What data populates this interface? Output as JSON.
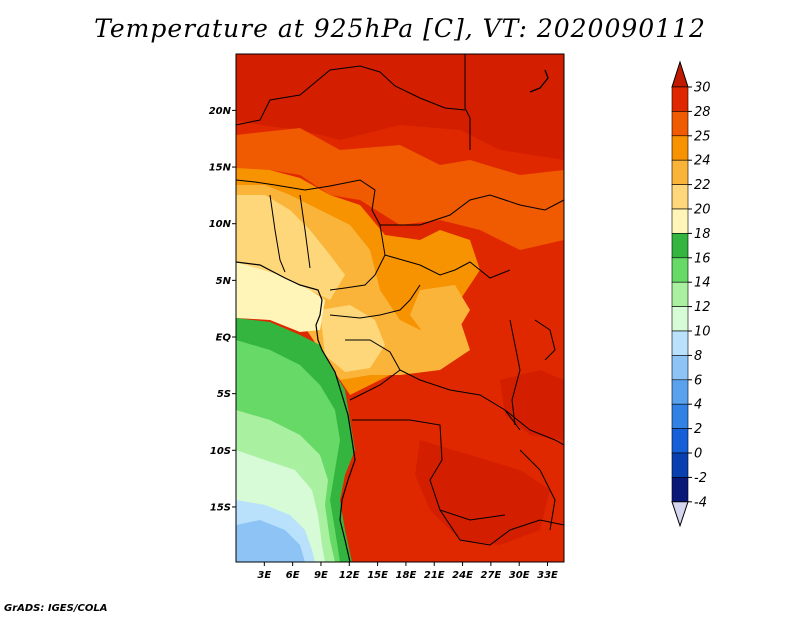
{
  "title": "Temperature at 925hPa [C], VT: 2020090112",
  "credit": "GrADS: IGES/COLA",
  "map": {
    "lat_labels": [
      "20N",
      "15N",
      "10N",
      "5N",
      "EQ",
      "5S",
      "10S",
      "15S"
    ],
    "lat_values": [
      20,
      15,
      10,
      5,
      0,
      -5,
      -10,
      -15
    ],
    "lon_labels": [
      "3E",
      "6E",
      "9E",
      "12E",
      "15E",
      "18E",
      "21E",
      "24E",
      "27E",
      "30E",
      "33E"
    ],
    "lon_values": [
      3,
      6,
      9,
      12,
      15,
      18,
      21,
      24,
      27,
      30,
      33
    ]
  },
  "colorbar": {
    "labels": [
      "30",
      "28",
      "25",
      "24",
      "22",
      "20",
      "18",
      "16",
      "14",
      "12",
      "10",
      "8",
      "6",
      "4",
      "2",
      "0",
      "-2",
      "-4"
    ],
    "colors": [
      "#c01a00",
      "#e02800",
      "#f05a00",
      "#f79200",
      "#fbb43a",
      "#fdd77a",
      "#fff5b8",
      "#33b540",
      "#66d966",
      "#a9f0a0",
      "#d6fbd6",
      "#b9e1fb",
      "#8ec4f5",
      "#5aa2ee",
      "#3282e6",
      "#1560d8",
      "#0840b0",
      "#0a1878"
    ],
    "top_cap_color": "#c01a00",
    "bottom_cap_color": "#d5d5f0"
  }
}
